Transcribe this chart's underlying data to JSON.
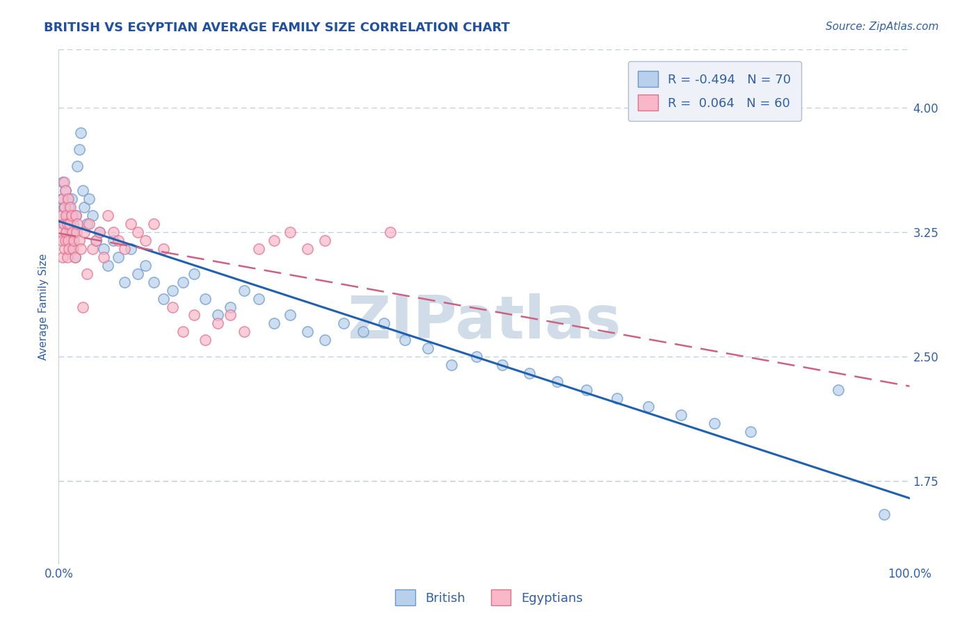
{
  "title": "BRITISH VS EGYPTIAN AVERAGE FAMILY SIZE CORRELATION CHART",
  "source": "Source: ZipAtlas.com",
  "ylabel": "Average Family Size",
  "xlim": [
    0.0,
    1.0
  ],
  "ylim": [
    1.25,
    4.35
  ],
  "yticks": [
    1.75,
    2.5,
    3.25,
    4.0
  ],
  "xticks": [
    0.0,
    0.25,
    0.5,
    0.75,
    1.0
  ],
  "xticklabels": [
    "0.0%",
    "",
    "",
    "",
    "100.0%"
  ],
  "british_color": "#b8d0ec",
  "british_edge_color": "#6898cc",
  "egyptian_color": "#f8b8c8",
  "egyptian_edge_color": "#e07090",
  "british_line_color": "#2060b0",
  "egyptian_line_color": "#d06080",
  "british_R": -0.494,
  "british_N": 70,
  "egyptian_R": 0.064,
  "egyptian_N": 60,
  "watermark": "ZIPatlas",
  "watermark_color": "#d0dde8",
  "british_x": [
    0.003,
    0.004,
    0.005,
    0.006,
    0.007,
    0.008,
    0.009,
    0.01,
    0.01,
    0.011,
    0.012,
    0.013,
    0.014,
    0.015,
    0.015,
    0.016,
    0.017,
    0.018,
    0.019,
    0.02,
    0.022,
    0.024,
    0.026,
    0.028,
    0.03,
    0.033,
    0.036,
    0.04,
    0.044,
    0.048,
    0.053,
    0.058,
    0.064,
    0.07,
    0.077,
    0.085,
    0.093,
    0.102,
    0.112,
    0.123,
    0.134,
    0.146,
    0.159,
    0.172,
    0.187,
    0.202,
    0.218,
    0.235,
    0.253,
    0.272,
    0.292,
    0.313,
    0.335,
    0.358,
    0.382,
    0.407,
    0.434,
    0.462,
    0.491,
    0.521,
    0.553,
    0.586,
    0.62,
    0.656,
    0.693,
    0.731,
    0.771,
    0.813,
    0.916,
    0.97
  ],
  "british_y": [
    3.35,
    3.45,
    3.55,
    3.4,
    3.3,
    3.5,
    3.25,
    3.45,
    3.2,
    3.35,
    3.4,
    3.25,
    3.3,
    3.2,
    3.45,
    3.15,
    3.3,
    3.25,
    3.1,
    3.35,
    3.65,
    3.75,
    3.85,
    3.5,
    3.4,
    3.3,
    3.45,
    3.35,
    3.2,
    3.25,
    3.15,
    3.05,
    3.2,
    3.1,
    2.95,
    3.15,
    3.0,
    3.05,
    2.95,
    2.85,
    2.9,
    2.95,
    3.0,
    2.85,
    2.75,
    2.8,
    2.9,
    2.85,
    2.7,
    2.75,
    2.65,
    2.6,
    2.7,
    2.65,
    2.7,
    2.6,
    2.55,
    2.45,
    2.5,
    2.45,
    2.4,
    2.35,
    2.3,
    2.25,
    2.2,
    2.15,
    2.1,
    2.05,
    2.3,
    1.55
  ],
  "egyptian_x": [
    0.002,
    0.003,
    0.004,
    0.005,
    0.005,
    0.006,
    0.006,
    0.007,
    0.007,
    0.008,
    0.008,
    0.009,
    0.009,
    0.01,
    0.01,
    0.011,
    0.011,
    0.012,
    0.013,
    0.014,
    0.015,
    0.016,
    0.017,
    0.018,
    0.019,
    0.02,
    0.021,
    0.022,
    0.024,
    0.026,
    0.028,
    0.03,
    0.033,
    0.036,
    0.04,
    0.044,
    0.048,
    0.053,
    0.058,
    0.064,
    0.07,
    0.077,
    0.085,
    0.093,
    0.102,
    0.112,
    0.123,
    0.134,
    0.146,
    0.159,
    0.172,
    0.187,
    0.202,
    0.218,
    0.235,
    0.253,
    0.272,
    0.292,
    0.313,
    0.39
  ],
  "egyptian_y": [
    3.25,
    3.35,
    3.2,
    3.45,
    3.1,
    3.3,
    3.55,
    3.15,
    3.4,
    3.2,
    3.5,
    3.25,
    3.35,
    3.1,
    3.3,
    3.2,
    3.45,
    3.15,
    3.3,
    3.4,
    3.35,
    3.25,
    3.15,
    3.2,
    3.1,
    3.35,
    3.25,
    3.3,
    3.2,
    3.15,
    2.8,
    3.25,
    3.0,
    3.3,
    3.15,
    3.2,
    3.25,
    3.1,
    3.35,
    3.25,
    3.2,
    3.15,
    3.3,
    3.25,
    3.2,
    3.3,
    3.15,
    2.8,
    2.65,
    2.75,
    2.6,
    2.7,
    2.75,
    2.65,
    3.15,
    3.2,
    3.25,
    3.15,
    3.2,
    3.25
  ],
  "title_color": "#2050a0",
  "axis_color": "#3060a8",
  "tick_color": "#3060a8",
  "grid_color": "#c0ccda",
  "legend_box_color": "#eef2f8",
  "title_fontsize": 13,
  "axis_label_fontsize": 11,
  "tick_fontsize": 12,
  "source_fontsize": 11,
  "legend_r_color": "#e03060",
  "legend_n_color": "#2050a0"
}
